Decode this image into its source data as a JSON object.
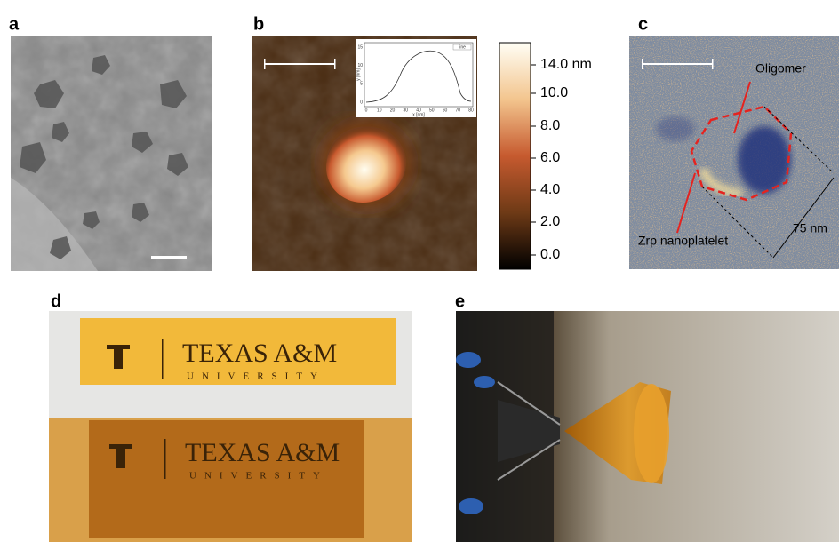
{
  "panels": {
    "a": {
      "label": "a"
    },
    "b": {
      "label": "b",
      "inset": {
        "xlabel": "x [nm]",
        "ylabel": "y [nm]",
        "legend": "line",
        "xticks": [
          "0",
          "10",
          "20",
          "30",
          "40",
          "50",
          "60",
          "70",
          "80"
        ],
        "yticks": [
          "0",
          "5",
          "10",
          "15"
        ]
      },
      "colorbar": [
        "14.0 nm",
        "10.0",
        "8.0",
        "6.0",
        "4.0",
        "2.0",
        "0.0"
      ]
    },
    "c": {
      "label": "c",
      "annotations": {
        "top": "Oligomer",
        "bottom": "Zrp nanoplatelet",
        "size": "75 nm"
      }
    },
    "d": {
      "label": "d",
      "strips": [
        {
          "name": "TEXAS A&M",
          "sub": "UNIVERSITY"
        },
        {
          "name": "TEXAS A&M",
          "sub": "UNIVERSITY"
        }
      ]
    },
    "e": {
      "label": "e"
    }
  }
}
